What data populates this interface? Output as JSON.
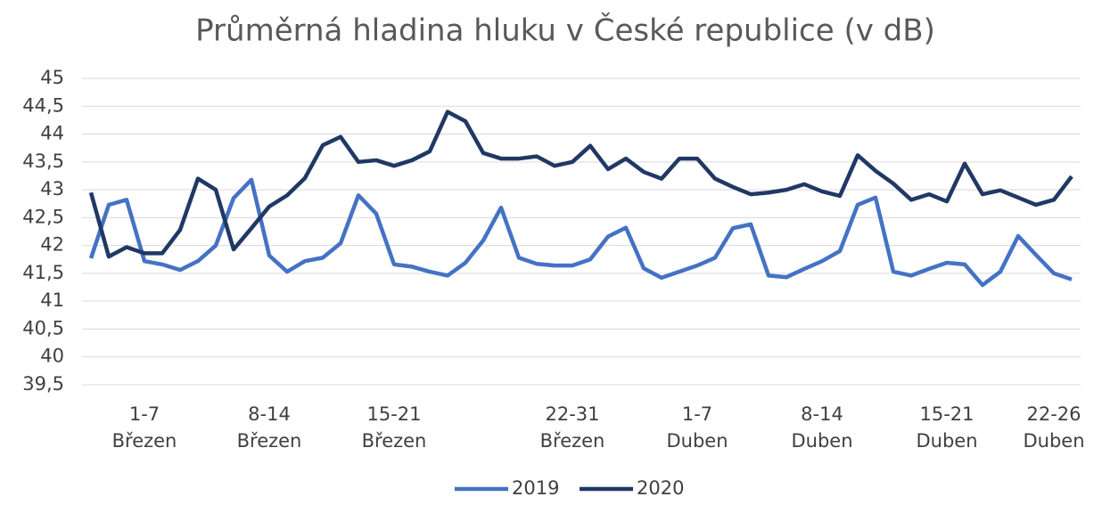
{
  "chart_data": {
    "type": "line",
    "title": "Průměrná hladina hluku v České republice (v dB)",
    "categories": [
      null,
      null,
      null,
      "1-7 Březen",
      null,
      null,
      null,
      null,
      null,
      null,
      "8-14 Březen",
      null,
      null,
      null,
      null,
      null,
      null,
      "15-21 Březen",
      null,
      null,
      null,
      null,
      null,
      null,
      null,
      null,
      null,
      "22-31 Březen",
      null,
      null,
      null,
      null,
      null,
      null,
      "1-7 Duben",
      null,
      null,
      null,
      null,
      null,
      null,
      "8-14 Duben",
      null,
      null,
      null,
      null,
      null,
      null,
      "15-21 Duben",
      null,
      null,
      null,
      null,
      null,
      "22-26 Duben",
      null
    ],
    "series": [
      {
        "name": "2019",
        "color": "#4472c4",
        "values": [
          41.77,
          42.73,
          42.82,
          41.72,
          41.66,
          41.56,
          41.72,
          42.0,
          42.85,
          43.18,
          41.82,
          41.53,
          41.72,
          41.78,
          42.04,
          42.9,
          42.57,
          41.66,
          41.62,
          41.53,
          41.46,
          41.69,
          42.09,
          42.68,
          41.78,
          41.67,
          41.64,
          41.64,
          41.75,
          42.16,
          42.32,
          41.59,
          41.42,
          41.53,
          41.64,
          41.78,
          42.31,
          42.38,
          41.46,
          41.43,
          41.58,
          41.72,
          41.9,
          42.73,
          42.86,
          41.53,
          41.46,
          41.58,
          41.69,
          41.66,
          41.29,
          41.53,
          42.17,
          41.83,
          41.5,
          41.39
        ]
      },
      {
        "name": "2020",
        "color": "#203864",
        "values": [
          42.95,
          41.8,
          41.97,
          41.86,
          41.86,
          42.28,
          43.2,
          43.0,
          41.93,
          42.31,
          42.7,
          42.9,
          43.21,
          43.8,
          43.95,
          43.5,
          43.53,
          43.43,
          43.53,
          43.69,
          44.4,
          44.23,
          43.66,
          43.56,
          43.56,
          43.6,
          43.43,
          43.5,
          43.79,
          43.37,
          43.56,
          43.32,
          43.2,
          43.56,
          43.56,
          43.2,
          43.05,
          42.92,
          42.95,
          43.0,
          43.1,
          42.97,
          42.89,
          43.62,
          43.34,
          43.11,
          42.82,
          42.92,
          42.79,
          43.47,
          42.92,
          42.99,
          42.86,
          42.73,
          42.82,
          43.24
        ]
      }
    ],
    "ylim": [
      39.5,
      45
    ],
    "yticks": [
      {
        "value": 39.5,
        "label": "39,5"
      },
      40,
      {
        "value": 40.5,
        "label": "40,5"
      },
      41,
      {
        "value": 41.5,
        "label": "41,5"
      },
      42,
      {
        "value": 42.5,
        "label": "42,5"
      },
      43,
      {
        "value": 43.5,
        "label": "43,5"
      },
      44,
      {
        "value": 44.5,
        "label": "44,5"
      },
      45
    ],
    "grid": true,
    "legend": "bottom"
  }
}
